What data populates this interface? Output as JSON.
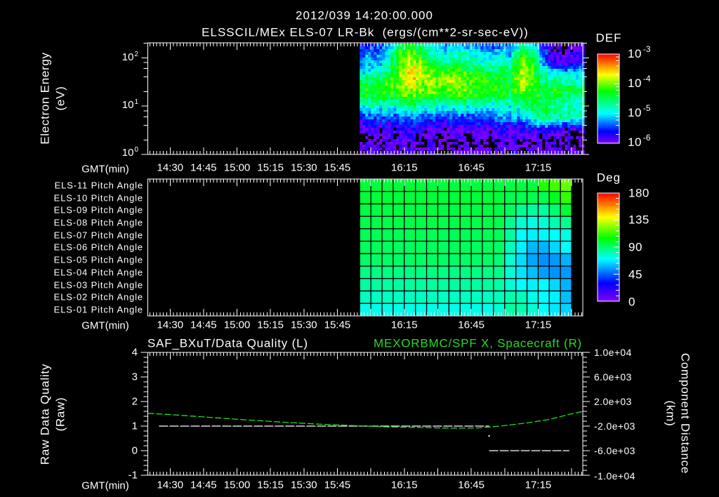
{
  "header": {
    "timestamp": "2012/039 14:20:00.000",
    "title": "ELSSCIL/MEx ELS-07 LR-Bk  (ergs/(cm**2-sr-sec-eV))"
  },
  "spectrogram": {
    "ylabel": "Electron Energy",
    "yunits": "(eV)",
    "xlabel": "GMT(min)",
    "yticks": [
      {
        "base": "10",
        "exp": "2"
      },
      {
        "base": "10",
        "exp": "1"
      },
      {
        "base": "10",
        "exp": "0"
      }
    ],
    "colorbar_title": "DEF",
    "colorbar_ticks": [
      {
        "base": "10",
        "exp": "-3"
      },
      {
        "base": "10",
        "exp": "-4"
      },
      {
        "base": "10",
        "exp": "-5"
      },
      {
        "base": "10",
        "exp": "-6"
      }
    ]
  },
  "pitch": {
    "rows": [
      "ELS-11 Pitch Angle",
      "ELS-10 Pitch Angle",
      "ELS-09 Pitch Angle",
      "ELS-08 Pitch Angle",
      "ELS-07 Pitch Angle",
      "ELS-06 Pitch Angle",
      "ELS-05 Pitch Angle",
      "ELS-04 Pitch Angle",
      "ELS-03 Pitch Angle",
      "ELS-02 Pitch Angle",
      "ELS-01 Pitch Angle"
    ],
    "xlabel": "GMT(min)",
    "colorbar_title": "Deg",
    "colorbar_ticks": [
      "180",
      "135",
      "90",
      "45",
      "0"
    ]
  },
  "lines": {
    "left_title": "SAF_BXuT/Data Quality (L)",
    "right_title": "MEXORBMC/SPF X, Spacecraft (R)",
    "ylabel_left": "Raw Data Quality",
    "yunits_left": "(Raw)",
    "ylabel_right": "Component Distance",
    "yunits_right": "(km)",
    "xlabel": "GMT(min)",
    "yticks_left": [
      "4",
      "3",
      "2",
      "1",
      "0",
      "-1"
    ],
    "yticks_right": [
      "1.0e+04",
      "6.0e+03",
      "2.0e+03",
      "-2.0e+03",
      "-6.0e+03",
      "-1.0e+04"
    ]
  },
  "time_axis": {
    "labels": [
      "14:30",
      "14:45",
      "15:00",
      "15:15",
      "15:30",
      "15:45",
      "16:15",
      "16:45",
      "17:15"
    ]
  },
  "colors": {
    "background": "#000000",
    "axes": "#ffffff",
    "quality_line": "#ffffff",
    "spf_x_line": "#22dd22",
    "right_title": "#22dd22"
  },
  "chart_data": [
    {
      "id": "electron-spectrogram",
      "type": "heatmap",
      "title": "ELSSCIL/MEx ELS-07 LR-Bk  (ergs/(cm**2-sr-sec-eV))",
      "xlabel": "GMT(min)",
      "ylabel": "Electron Energy (eV)",
      "y_scale": "log",
      "ylim": [
        1,
        204
      ],
      "y_minor_multiples": [
        2,
        4,
        6,
        8
      ],
      "xlim": [
        "14:20",
        "17:35"
      ],
      "x_major_tick_min": 15,
      "x_minor_per_major": 10,
      "x_tick_labels": [
        "14:30",
        "14:45",
        "15:00",
        "15:15",
        "15:30",
        "15:45",
        "16:15",
        "16:45",
        "17:15"
      ],
      "data_x_range": [
        "15:55",
        "17:35"
      ],
      "colorbar": {
        "label": "DEF",
        "scale": "log",
        "range_log10": [
          -6,
          -3
        ],
        "stops": [
          [
            -6.0,
            "#7800ff"
          ],
          [
            -5.6,
            "#0000ff"
          ],
          [
            -5.0,
            "#00ffff"
          ],
          [
            -4.25,
            "#00ff00"
          ],
          [
            -3.7,
            "#ffff00"
          ],
          [
            -3.35,
            "#ff8000"
          ],
          [
            -3.0,
            "#ff0000"
          ]
        ]
      },
      "blank_below_log10": -6.12,
      "texture_jitter": 0.3,
      "values_log10": [
        [
          -5.5,
          -5.5,
          -5.4,
          -4.6,
          -4.5,
          -4.6,
          -5.0,
          -5.2,
          -5.2,
          -5.2,
          -5.3,
          -5.3,
          -5.3,
          -5.4,
          -4.8,
          -4.9,
          -5.6,
          -6.1,
          -6.1,
          -5.9
        ],
        [
          -5.4,
          -5.4,
          -5.2,
          -4.3,
          -4.2,
          -4.3,
          -4.9,
          -5.0,
          -4.9,
          -4.9,
          -5.0,
          -5.1,
          -5.2,
          -5.3,
          -4.4,
          -4.6,
          -5.5,
          -6.1,
          -6.0,
          -5.8
        ],
        [
          -5.3,
          -5.3,
          -5.0,
          -4.2,
          -4.1,
          -4.1,
          -4.8,
          -4.8,
          -4.8,
          -4.8,
          -4.9,
          -4.9,
          -5.0,
          -5.0,
          -4.2,
          -4.3,
          -5.4,
          -6.0,
          -6.0,
          -5.7
        ],
        [
          -5.2,
          -5.2,
          -4.9,
          -4.1,
          -4.0,
          -3.9,
          -4.4,
          -4.6,
          -4.6,
          -4.7,
          -4.8,
          -4.8,
          -4.9,
          -4.7,
          -4.1,
          -4.2,
          -5.3,
          -5.9,
          -5.9,
          -5.5
        ],
        [
          -5.1,
          -5.1,
          -4.8,
          -4.0,
          -3.8,
          -3.75,
          -4.2,
          -4.3,
          -4.3,
          -4.5,
          -4.6,
          -4.6,
          -4.7,
          -4.6,
          -4.0,
          -4.1,
          -5.0,
          -5.5,
          -5.4,
          -5.3
        ],
        [
          -4.9,
          -4.9,
          -4.6,
          -4.0,
          -3.7,
          -3.7,
          -4.1,
          -4.1,
          -4.1,
          -4.2,
          -4.3,
          -4.3,
          -4.5,
          -4.5,
          -3.9,
          -4.1,
          -4.8,
          -5.0,
          -5.0,
          -5.0
        ],
        [
          -4.6,
          -4.6,
          -4.4,
          -4.0,
          -3.7,
          -3.75,
          -4.0,
          -3.9,
          -3.8,
          -4.1,
          -4.2,
          -4.2,
          -4.3,
          -4.4,
          -3.85,
          -4.1,
          -4.7,
          -4.8,
          -4.8,
          -4.8
        ],
        [
          -4.4,
          -4.4,
          -4.3,
          -4.1,
          -3.85,
          -3.9,
          -4.0,
          -3.9,
          -3.85,
          -4.1,
          -4.2,
          -4.2,
          -4.3,
          -4.4,
          -4.0,
          -4.1,
          -4.5,
          -4.7,
          -4.7,
          -4.7
        ],
        [
          -4.35,
          -4.35,
          -4.3,
          -4.1,
          -4.0,
          -4.0,
          -4.1,
          -4.1,
          -4.1,
          -4.1,
          -4.2,
          -4.2,
          -4.3,
          -4.4,
          -4.1,
          -4.2,
          -4.4,
          -4.3,
          -4.3,
          -4.2
        ],
        [
          -4.4,
          -4.4,
          -4.4,
          -4.2,
          -4.1,
          -4.1,
          -4.3,
          -4.3,
          -4.2,
          -4.2,
          -4.3,
          -4.3,
          -4.4,
          -4.5,
          -4.3,
          -4.2,
          -4.4,
          -4.4,
          -4.6,
          -4.6
        ],
        [
          -4.7,
          -4.7,
          -4.7,
          -4.6,
          -4.5,
          -4.5,
          -4.6,
          -4.6,
          -4.6,
          -4.6,
          -4.6,
          -4.6,
          -4.7,
          -4.7,
          -4.6,
          -4.3,
          -4.4,
          -4.6,
          -4.7,
          -4.7
        ],
        [
          -4.9,
          -4.9,
          -4.9,
          -4.8,
          -4.8,
          -4.8,
          -4.9,
          -4.9,
          -4.9,
          -4.9,
          -4.9,
          -4.9,
          -4.9,
          -4.9,
          -4.8,
          -4.5,
          -4.5,
          -4.7,
          -4.7,
          -4.7
        ],
        [
          -5.2,
          -5.2,
          -5.2,
          -5.1,
          -5.1,
          -5.1,
          -5.2,
          -5.2,
          -5.2,
          -5.2,
          -5.2,
          -5.2,
          -5.1,
          -5.0,
          -5.0,
          -4.6,
          -4.5,
          -4.7,
          -4.7,
          -4.7
        ],
        [
          -5.5,
          -5.5,
          -5.5,
          -5.4,
          -5.4,
          -5.4,
          -5.5,
          -5.5,
          -5.5,
          -5.5,
          -5.5,
          -5.4,
          -5.3,
          -5.3,
          -5.3,
          -4.8,
          -4.6,
          -4.8,
          -4.8,
          -4.8
        ],
        [
          -5.7,
          -5.7,
          -5.7,
          -5.6,
          -5.6,
          -5.6,
          -5.7,
          -5.7,
          -5.7,
          -5.7,
          -5.7,
          -5.6,
          -5.6,
          -5.6,
          -5.6,
          -5.3,
          -5.0,
          -5.3,
          -5.4,
          -5.3
        ],
        [
          -5.9,
          -5.9,
          -5.9,
          -5.8,
          -5.8,
          -5.8,
          -5.9,
          -5.9,
          -5.9,
          -5.9,
          -5.9,
          -5.8,
          -5.8,
          -5.8,
          -5.8,
          -5.7,
          -5.6,
          -5.8,
          -5.9,
          -5.8
        ],
        [
          -6.0,
          -6.0,
          -6.0,
          -5.9,
          -5.9,
          -5.9,
          -6.0,
          -6.0,
          -6.0,
          -6.0,
          -6.0,
          -5.9,
          -5.9,
          -5.9,
          -5.9,
          -5.9,
          -5.9,
          -6.0,
          -6.0,
          -6.0
        ],
        [
          -6.1,
          -6.0,
          -6.0,
          -6.0,
          -6.0,
          -6.0,
          -6.0,
          -6.1,
          -6.0,
          -6.0,
          -6.0,
          -6.0,
          -6.0,
          -6.0,
          -6.0,
          -6.0,
          -6.0,
          -6.1,
          -6.0,
          -6.0
        ],
        [
          -6.0,
          -6.1,
          -6.0,
          -6.0,
          -6.0,
          -6.0,
          -6.0,
          -6.0,
          -6.1,
          -6.0,
          -6.0,
          -6.0,
          -6.0,
          -6.0,
          -6.0,
          -6.0,
          -6.0,
          -6.0,
          -6.1,
          -6.0
        ],
        [
          -6.0,
          -6.0,
          -6.0,
          -5.9,
          -6.0,
          -6.0,
          -6.0,
          -6.0,
          -6.0,
          -6.0,
          -6.0,
          -6.0,
          -6.0,
          -6.0,
          -6.0,
          -6.0,
          -6.0,
          -6.0,
          -6.0,
          -6.0
        ]
      ]
    },
    {
      "id": "pitch-angle",
      "type": "heatmap",
      "xlabel": "GMT(min)",
      "rows": [
        "ELS-11",
        "ELS-10",
        "ELS-09",
        "ELS-08",
        "ELS-07",
        "ELS-06",
        "ELS-05",
        "ELS-04",
        "ELS-03",
        "ELS-02",
        "ELS-01"
      ],
      "xlim": [
        "14:20",
        "17:35"
      ],
      "data_x_range": [
        "15:55",
        "17:30"
      ],
      "colorbar": {
        "label": "Deg",
        "range": [
          0,
          180
        ],
        "minor_step": 9,
        "major_step": 45,
        "stops": [
          [
            0,
            "#8000ff"
          ],
          [
            30,
            "#0000ff"
          ],
          [
            70,
            "#00ffff"
          ],
          [
            105,
            "#00ff00"
          ],
          [
            140,
            "#ffff00"
          ],
          [
            160,
            "#ff8000"
          ],
          [
            180,
            "#ff0000"
          ]
        ]
      },
      "values_deg": [
        [
          97,
          97,
          97,
          97,
          97,
          97,
          97,
          97,
          97,
          97,
          97,
          97,
          97,
          96,
          96,
          96,
          109,
          114,
          119
        ],
        [
          97,
          97,
          97,
          97,
          97,
          97,
          97,
          97,
          97,
          97,
          97,
          97,
          97,
          94,
          94,
          94,
          94,
          101,
          112
        ],
        [
          96,
          96,
          96,
          96,
          96,
          96,
          96,
          96,
          96,
          96,
          96,
          96,
          96,
          92,
          85,
          83,
          83,
          90,
          98
        ],
        [
          95,
          95,
          95,
          95,
          95,
          95,
          95,
          95,
          95,
          95,
          95,
          95,
          95,
          85,
          76,
          74,
          76,
          81,
          85
        ],
        [
          93,
          93,
          93,
          93,
          93,
          93,
          93,
          93,
          93,
          93,
          93,
          93,
          93,
          83,
          70,
          68,
          69,
          70,
          74
        ],
        [
          92,
          92,
          92,
          92,
          92,
          92,
          92,
          92,
          92,
          92,
          92,
          92,
          91,
          79,
          68,
          59,
          58,
          64,
          70
        ],
        [
          91,
          91,
          91,
          91,
          91,
          91,
          91,
          91,
          91,
          91,
          91,
          91,
          89,
          76,
          65,
          56,
          53,
          54,
          58
        ],
        [
          87,
          87,
          87,
          87,
          87,
          87,
          87,
          87,
          87,
          87,
          87,
          87,
          86,
          76,
          66,
          60,
          55,
          53,
          54
        ],
        [
          83,
          83,
          83,
          83,
          83,
          83,
          83,
          83,
          83,
          83,
          83,
          83,
          82,
          76,
          70,
          68,
          70,
          64,
          58
        ],
        [
          78,
          78,
          78,
          78,
          78,
          78,
          78,
          78,
          78,
          78,
          78,
          78,
          79,
          81,
          79,
          73,
          70,
          68,
          60
        ],
        [
          73,
          73,
          73,
          73,
          73,
          73,
          73,
          73,
          73,
          73,
          73,
          73,
          76,
          83,
          81,
          76,
          70,
          66,
          63
        ]
      ]
    },
    {
      "id": "quality-and-position",
      "type": "line",
      "title_left": "SAF_BXuT/Data Quality (L)",
      "title_right": "MEXORBMC/SPF X, Spacecraft (R)",
      "xlabel": "GMT(min)",
      "xlim": [
        "14:20",
        "17:35"
      ],
      "ylabel_left": "Raw Data Quality (Raw)",
      "ylim_left": [
        -1,
        4
      ],
      "ylabel_right": "Component Distance (km)",
      "ylim_right": [
        -10000,
        10000
      ],
      "grid": false,
      "series": [
        {
          "name": "SAF_BXuT/Data Quality",
          "axis": "left",
          "color": "#ffffff",
          "segments": [
            [
              [
                "14:25",
                1
              ],
              [
                "16:53",
                1
              ]
            ],
            [
              [
                "16:53",
                0
              ],
              [
                "17:29",
                0
              ]
            ]
          ],
          "points": [
            [
              "16:53",
              0.6
            ]
          ]
        },
        {
          "name": "MEXORBMC/SPF X",
          "axis": "right",
          "color": "#22dd22",
          "line": [
            [
              "14:20",
              80
            ],
            [
              "14:32",
              -170
            ],
            [
              "14:48",
              -580
            ],
            [
              "15:04",
              -980
            ],
            [
              "15:20",
              -1350
            ],
            [
              "15:36",
              -1670
            ],
            [
              "15:51",
              -1900
            ],
            [
              "16:07",
              -2130
            ],
            [
              "16:23",
              -2240
            ],
            [
              "16:35",
              -2330
            ],
            [
              "16:48",
              -2300
            ],
            [
              "16:53",
              -2150
            ],
            [
              "16:59",
              -1950
            ],
            [
              "17:10",
              -1490
            ],
            [
              "17:20",
              -920
            ],
            [
              "17:29",
              -80
            ],
            [
              "17:35",
              380
            ]
          ]
        }
      ]
    }
  ]
}
